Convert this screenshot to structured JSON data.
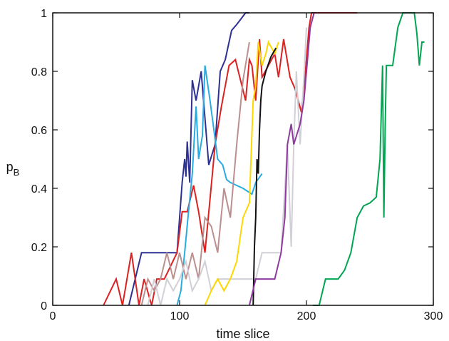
{
  "chart_data": {
    "type": "line",
    "xlabel": "time slice",
    "ylabel": "p",
    "ylabel_subscript": "B",
    "xlim": [
      0,
      300
    ],
    "ylim": [
      0,
      1
    ],
    "xticks": [
      0,
      100,
      200,
      300
    ],
    "xtick_labels": [
      "0",
      "100",
      "200",
      "300"
    ],
    "yticks": [
      0,
      0.2,
      0.4,
      0.6,
      0.8,
      1
    ],
    "ytick_labels": [
      "0",
      "0.2",
      "0.4",
      "0.6",
      "0.8",
      "1"
    ],
    "grid": false,
    "series": [
      {
        "color": "#2E3192",
        "x": [
          60,
          70,
          75,
          88,
          98,
          102,
          104,
          105,
          106,
          108,
          110,
          113,
          117,
          123,
          128,
          132,
          136,
          139,
          141,
          145,
          152,
          155
        ],
        "y": [
          0,
          0.18,
          0.18,
          0.18,
          0.18,
          0.42,
          0.5,
          0.44,
          0.56,
          0.42,
          0.77,
          0.7,
          0.8,
          0.48,
          0.55,
          0.8,
          0.84,
          0.9,
          0.94,
          0.96,
          1,
          1
        ]
      },
      {
        "color": "#DD2020",
        "x": [
          40,
          50,
          55,
          62,
          68,
          72,
          78,
          82,
          88,
          98,
          102,
          106,
          111,
          115,
          120,
          125,
          128,
          133,
          139,
          144,
          152,
          155,
          157,
          160,
          163,
          165,
          170,
          175,
          178,
          182,
          187,
          191,
          196,
          199,
          202,
          204,
          208,
          220,
          240
        ],
        "y": [
          0,
          0.09,
          0,
          0.18,
          0,
          0.09,
          0,
          0.09,
          0.09,
          0.18,
          0.32,
          0.32,
          0.41,
          0.32,
          0.18,
          0.41,
          0.55,
          0.68,
          0.82,
          0.84,
          0.7,
          0.84,
          0.82,
          0.7,
          0.91,
          0.78,
          0.82,
          0.86,
          0.78,
          0.91,
          0.78,
          0.74,
          0.66,
          0.79,
          0.95,
          1,
          1,
          1,
          1
        ]
      },
      {
        "color": "#29ABE2",
        "x": [
          98,
          101,
          104,
          107,
          110,
          113,
          115,
          118,
          120,
          124,
          127,
          130,
          134,
          137,
          140,
          150,
          157,
          160,
          165
        ],
        "y": [
          0,
          0.05,
          0.18,
          0.32,
          0.45,
          0.68,
          0.5,
          0.58,
          0.82,
          0.7,
          0.6,
          0.5,
          0.48,
          0.43,
          0.42,
          0.4,
          0.38,
          0.42,
          0.45
        ]
      },
      {
        "color": "#BC8F8F",
        "x": [
          70,
          75,
          80,
          85,
          90,
          95,
          100,
          105,
          110,
          115,
          120,
          125,
          130,
          135,
          140,
          145,
          150,
          155
        ],
        "y": [
          0,
          0.09,
          0.05,
          0.09,
          0.18,
          0.09,
          0.18,
          0.09,
          0.18,
          0.09,
          0.3,
          0.27,
          0.18,
          0.4,
          0.3,
          0.55,
          0.77,
          0.9
        ]
      },
      {
        "color": "#D0D0D8",
        "x": [
          75,
          80,
          85,
          90,
          95,
          100,
          105,
          110,
          115,
          120,
          125,
          130,
          160,
          165,
          170,
          180,
          185,
          188,
          190,
          192,
          195,
          198,
          200
        ],
        "y": [
          0,
          0.09,
          0,
          0.09,
          0.05,
          0.09,
          0.15,
          0.05,
          0.09,
          0.15,
          0.05,
          0.09,
          0.09,
          0.18,
          0.18,
          0.18,
          0.55,
          0.2,
          0.55,
          0.8,
          0.55,
          0.78,
          0.95
        ]
      },
      {
        "color": "#FFD700",
        "x": [
          120,
          125,
          130,
          135,
          140,
          145,
          150,
          155,
          158,
          160,
          162,
          165,
          168,
          170,
          175,
          178
        ],
        "y": [
          0,
          0.05,
          0.09,
          0.05,
          0.09,
          0.15,
          0.3,
          0.35,
          0.7,
          0.75,
          0.9,
          0.82,
          0.86,
          0.9,
          0.86,
          0.9
        ]
      },
      {
        "color": "#111111",
        "x": [
          158,
          159,
          160,
          161,
          162,
          163,
          164,
          165,
          168,
          172,
          176
        ],
        "y": [
          0,
          0.2,
          0.3,
          0.5,
          0.45,
          0.6,
          0.7,
          0.75,
          0.8,
          0.85,
          0.88
        ]
      },
      {
        "color": "#8E3A9E",
        "x": [
          155,
          160,
          165,
          170,
          175,
          180,
          183,
          185,
          188,
          190,
          195,
          198,
          200,
          203,
          206
        ],
        "y": [
          0,
          0.09,
          0.09,
          0.09,
          0.09,
          0.18,
          0.3,
          0.55,
          0.62,
          0.55,
          0.62,
          0.7,
          0.8,
          0.95,
          1
        ]
      },
      {
        "color": "#00A651",
        "x": [
          205,
          210,
          215,
          220,
          225,
          230,
          235,
          240,
          245,
          250,
          255,
          258,
          260,
          261,
          262,
          263,
          265,
          268,
          272,
          276,
          280,
          285,
          287,
          289,
          291,
          293
        ],
        "y": [
          0,
          0,
          0.09,
          0.09,
          0.09,
          0.12,
          0.18,
          0.3,
          0.34,
          0.35,
          0.37,
          0.5,
          0.82,
          0.3,
          0.6,
          0.82,
          0.82,
          0.82,
          0.95,
          1,
          1,
          1,
          0.93,
          0.82,
          0.9,
          0.9
        ]
      }
    ]
  }
}
